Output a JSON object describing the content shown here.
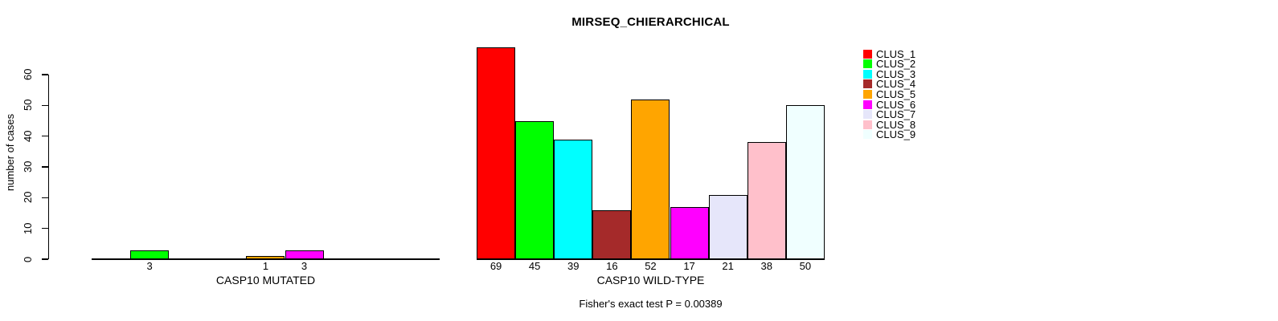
{
  "chart_data": {
    "type": "bar",
    "title": "MIRSEQ_CHIERARCHICAL",
    "ylabel": "number of cases",
    "yticks": [
      0,
      10,
      20,
      30,
      40,
      50,
      60
    ],
    "ylim": [
      0,
      69
    ],
    "grid": false,
    "categories": [
      "CLUS_1",
      "CLUS_2",
      "CLUS_3",
      "CLUS_4",
      "CLUS_5",
      "CLUS_6",
      "CLUS_7",
      "CLUS_8",
      "CLUS_9"
    ],
    "colors": [
      "#FF0000",
      "#00FF00",
      "#00FFFF",
      "#A52A2A",
      "#FFA500",
      "#FF00FF",
      "#E6E6FA",
      "#FFC0CB",
      "#F0FFFF"
    ],
    "bar_border_color": "#000000",
    "groups": [
      {
        "xlabel": "CASP10 MUTATED",
        "values": [
          0,
          3,
          0,
          0,
          1,
          3,
          0,
          0,
          0
        ]
      },
      {
        "xlabel": "CASP10 WILD-TYPE",
        "values": [
          69,
          45,
          39,
          16,
          52,
          17,
          21,
          38,
          50
        ]
      }
    ],
    "annotation": "Fisher's exact test P = 0.00389",
    "legend": {
      "position": "right",
      "entries": [
        "CLUS_1",
        "CLUS_2",
        "CLUS_3",
        "CLUS_4",
        "CLUS_5",
        "CLUS_6",
        "CLUS_7",
        "CLUS_8",
        "CLUS_9"
      ]
    }
  }
}
